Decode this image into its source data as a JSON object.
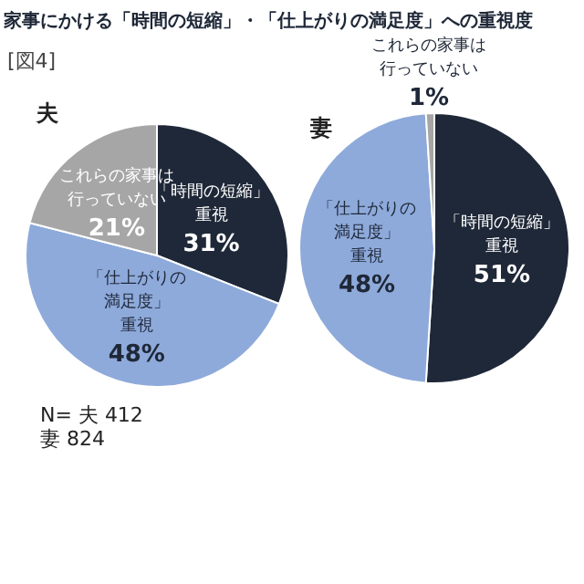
{
  "chart_data": [
    {
      "type": "pie",
      "title": "家事にかける「時間の短縮」・「仕上がりの満足度」への重視度",
      "subtitle": "[図4]",
      "categories": [
        "「時間の短縮」重視",
        "「仕上がりの満足度」重視",
        "これらの家事は行っていない"
      ],
      "values": [
        31,
        48,
        21
      ],
      "value_labels": [
        "31%",
        "48%",
        "21%"
      ],
      "colors": [
        "#1f2838",
        "#8eaadb",
        "#a6a6a6"
      ],
      "annotations": [
        "夫",
        "N= 夫 412\n妻 824"
      ]
    },
    {
      "type": "pie",
      "categories": [
        "「時間の短縮」重視",
        "「仕上がりの満足度」重視",
        "これらの家事は行っていない"
      ],
      "values": [
        51,
        48,
        1
      ],
      "value_labels": [
        "51%",
        "48%",
        "1%"
      ],
      "colors": [
        "#1f2838",
        "#8eaadb",
        "#a6a6a6"
      ],
      "annotations": [
        "妻"
      ]
    }
  ]
}
